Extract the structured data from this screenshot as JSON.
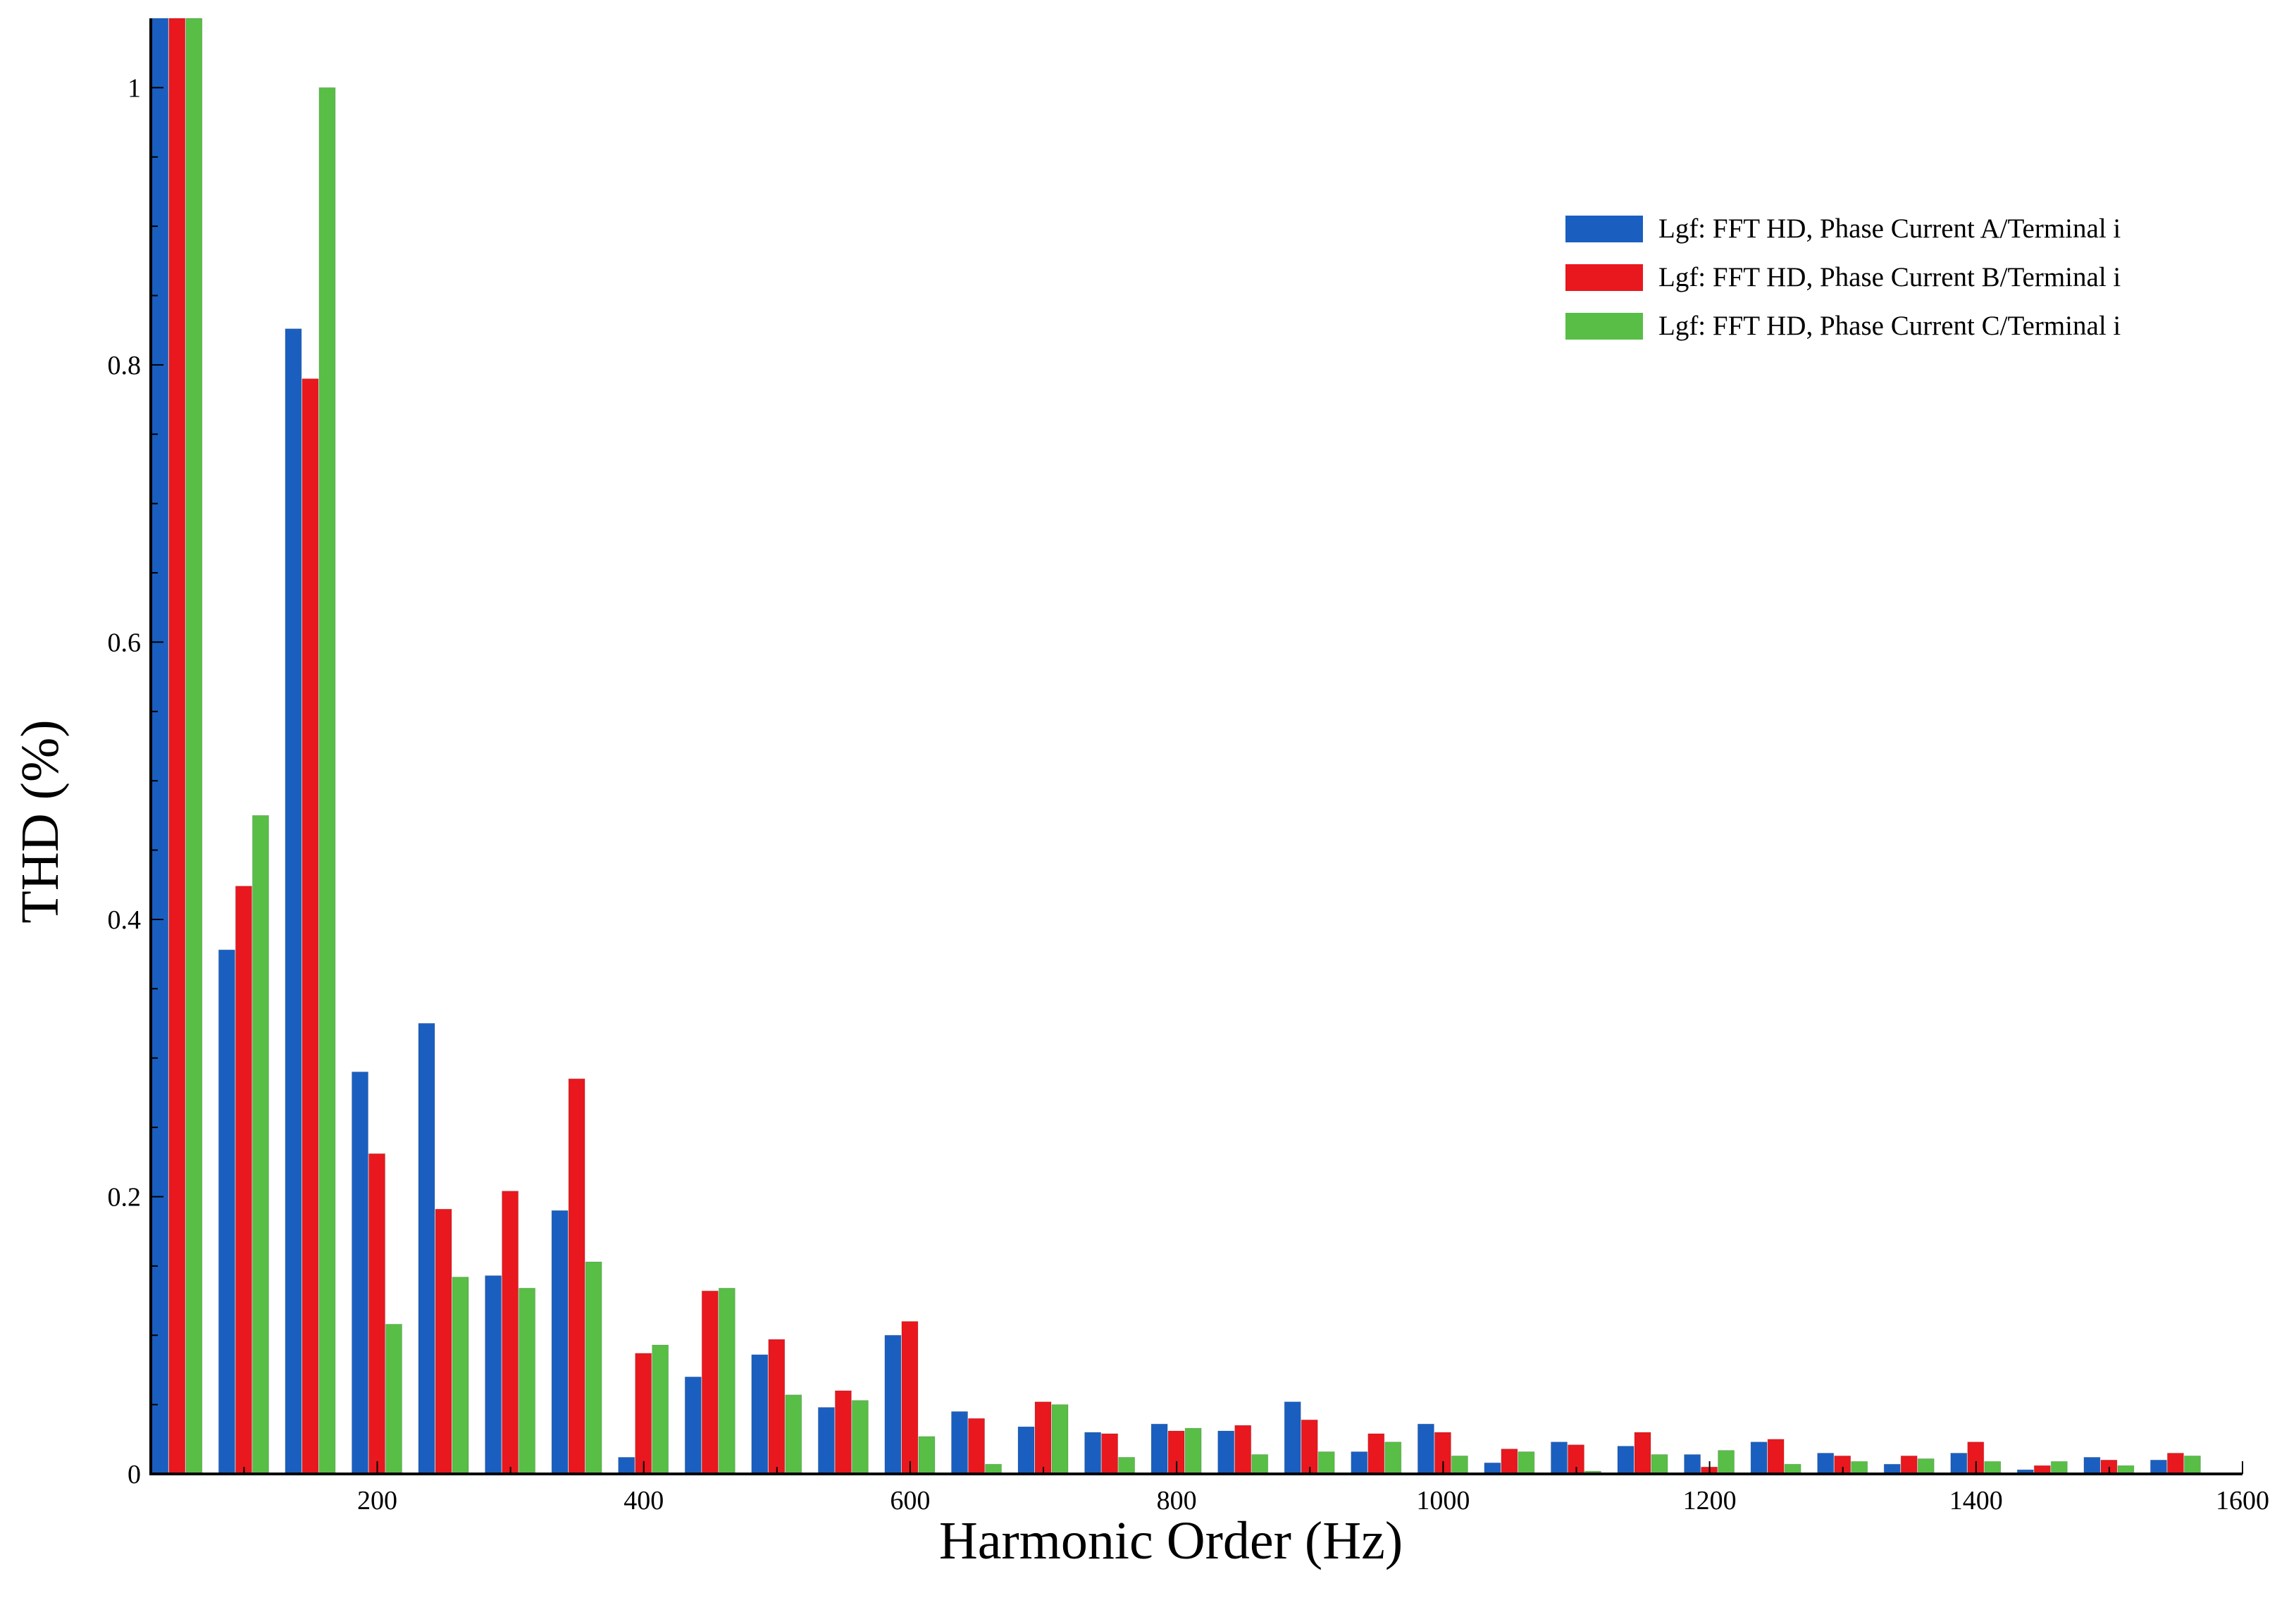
{
  "chart_data": {
    "type": "bar",
    "title": "",
    "xlabel": "Harmonic Order (Hz)",
    "ylabel": "THD (%)",
    "xlim": [
      30,
      1600
    ],
    "ylim": [
      0,
      1.05
    ],
    "xticks": [
      200,
      400,
      600,
      800,
      1000,
      1200,
      1400,
      1600
    ],
    "yticks": [
      0,
      0.2,
      0.4,
      0.6,
      0.8,
      1
    ],
    "ytick_labels": [
      "0",
      "0.2",
      "0.4",
      "0.6",
      "0.8",
      "1"
    ],
    "grid": false,
    "legend_position": "top-right",
    "categories": [
      50,
      100,
      150,
      200,
      250,
      300,
      350,
      400,
      450,
      500,
      550,
      600,
      650,
      700,
      750,
      800,
      850,
      900,
      950,
      1000,
      1050,
      1100,
      1150,
      1200,
      1250,
      1300,
      1350,
      1400,
      1450,
      1500,
      1550
    ],
    "series": [
      {
        "name": "Lgf: FFT HD, Phase Current A/Terminal i",
        "color": "#1a5fc0",
        "values": [
          1.05,
          0.378,
          0.826,
          0.29,
          0.325,
          0.143,
          0.19,
          0.012,
          0.07,
          0.086,
          0.048,
          0.1,
          0.045,
          0.034,
          0.03,
          0.036,
          0.031,
          0.052,
          0.016,
          0.036,
          0.008,
          0.023,
          0.02,
          0.014,
          0.023,
          0.015,
          0.007,
          0.015,
          0.003,
          0.012,
          0.01
        ]
      },
      {
        "name": "Lgf: FFT HD, Phase Current B/Terminal i",
        "color": "#e8181e",
        "values": [
          1.05,
          0.424,
          0.79,
          0.231,
          0.191,
          0.204,
          0.285,
          0.087,
          0.132,
          0.097,
          0.06,
          0.11,
          0.04,
          0.052,
          0.029,
          0.031,
          0.035,
          0.039,
          0.029,
          0.03,
          0.018,
          0.021,
          0.03,
          0.005,
          0.025,
          0.013,
          0.013,
          0.023,
          0.006,
          0.01,
          0.015
        ]
      },
      {
        "name": "Lgf: FFT HD, Phase Current C/Terminal i",
        "color": "#58be46",
        "values": [
          1.05,
          0.475,
          1.0,
          0.108,
          0.142,
          0.134,
          0.153,
          0.093,
          0.134,
          0.057,
          0.053,
          0.027,
          0.007,
          0.05,
          0.012,
          0.033,
          0.014,
          0.016,
          0.023,
          0.013,
          0.016,
          0.002,
          0.014,
          0.017,
          0.007,
          0.009,
          0.011,
          0.009,
          0.009,
          0.006,
          0.013
        ]
      }
    ]
  }
}
